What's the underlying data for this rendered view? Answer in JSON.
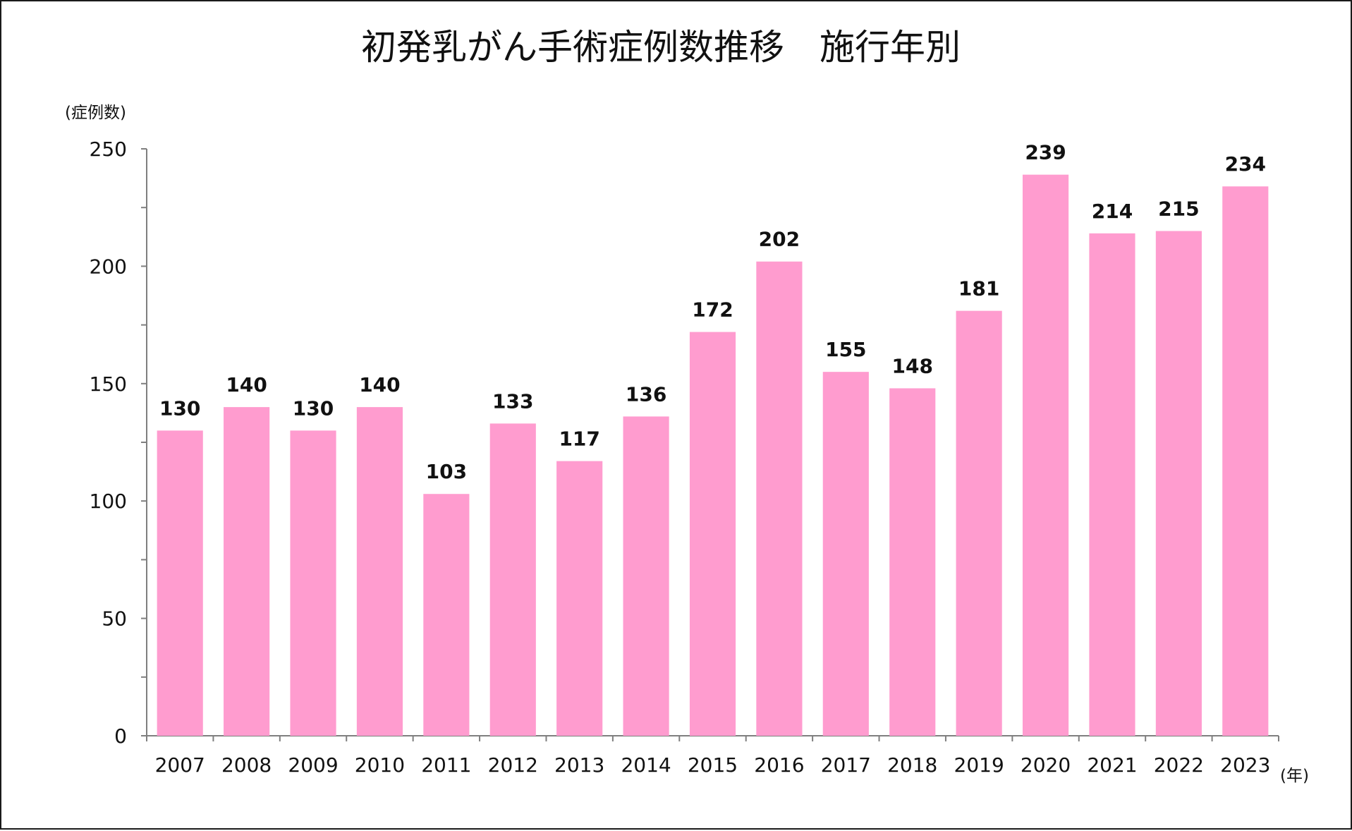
{
  "chart_data": {
    "type": "bar",
    "title": "初発乳がん手術症例数推移　施行年別",
    "ylabel": "(症例数)",
    "xlabel": "(年)",
    "ylim": [
      0,
      250
    ],
    "yticks": [
      0,
      50,
      100,
      150,
      200,
      250
    ],
    "categories": [
      "2007",
      "2008",
      "2009",
      "2010",
      "2011",
      "2012",
      "2013",
      "2014",
      "2015",
      "2016",
      "2017",
      "2018",
      "2019",
      "2020",
      "2021",
      "2022",
      "2023"
    ],
    "values": [
      130,
      140,
      130,
      140,
      103,
      133,
      117,
      136,
      172,
      202,
      155,
      148,
      181,
      239,
      214,
      215,
      234
    ],
    "data_labels": true,
    "grid": false,
    "legend": "none",
    "colors": {
      "bar": "#ff9ccf",
      "axis": "#7f7f7f",
      "text": "#111111",
      "border": "#1a1a1a"
    }
  }
}
